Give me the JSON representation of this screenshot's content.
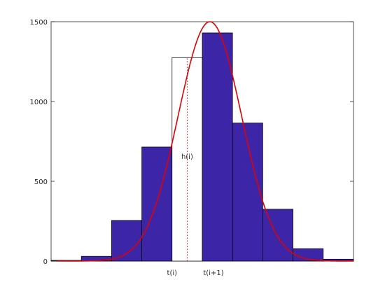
{
  "chart_data": {
    "type": "bar",
    "title": "",
    "xlabel": "",
    "ylabel": "",
    "x_edges": [
      -5,
      -4,
      -3,
      -2,
      -1,
      0,
      1,
      2,
      3,
      4,
      5
    ],
    "xlim": [
      -5,
      5
    ],
    "ylim": [
      0,
      1500
    ],
    "yticks": [
      0,
      500,
      1000,
      1500
    ],
    "bars": [
      {
        "x0": -5,
        "x1": -4,
        "value": 5,
        "filled": true
      },
      {
        "x0": -4,
        "x1": -3,
        "value": 30,
        "filled": true
      },
      {
        "x0": -3,
        "x1": -2,
        "value": 255,
        "filled": true
      },
      {
        "x0": -2,
        "x1": -1,
        "value": 715,
        "filled": true
      },
      {
        "x0": -1,
        "x1": 0,
        "value": 1275,
        "filled": false
      },
      {
        "x0": 0,
        "x1": 1,
        "value": 1430,
        "filled": true
      },
      {
        "x0": 1,
        "x1": 2,
        "value": 865,
        "filled": true
      },
      {
        "x0": 2,
        "x1": 3,
        "value": 325,
        "filled": true
      },
      {
        "x0": 3,
        "x1": 4,
        "value": 78,
        "filled": true
      },
      {
        "x0": 4,
        "x1": 5,
        "value": 12,
        "filled": true
      }
    ],
    "curve": {
      "type": "gaussian",
      "peak_x": 0.25,
      "peak_y": 1500,
      "sigma_left": 1.05,
      "sigma_right": 1.05,
      "x_range": [
        -4.8,
        5.0
      ]
    },
    "dotted_line": {
      "x": -0.5,
      "y0": 0,
      "y1": 1275
    },
    "annotations": {
      "h_label": "h(i)",
      "h_label_pos": {
        "x": -0.5,
        "y": 640
      },
      "t_i_label": "t(i)",
      "t_i_x": -1,
      "t_i1_label": "t(i+1)",
      "t_i1_x": 0
    },
    "colors": {
      "bar_fill": "#3c26a7",
      "bar_stroke": "#000000",
      "curve": "#e00000",
      "dotted": "#e00000"
    }
  }
}
